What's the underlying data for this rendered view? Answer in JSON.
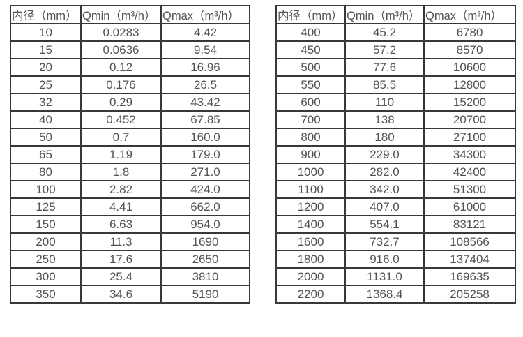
{
  "page": {
    "background_color": "#ffffff",
    "border_color": "#383838",
    "text_color": "#525252"
  },
  "chart_data": [
    {
      "type": "table",
      "title": "flow-range-table-small-diameters",
      "columns": [
        "内径（mm）",
        "Qmin（m³/h）",
        "Qmax（m³/h）"
      ],
      "rows": [
        [
          "10",
          "0.0283",
          "4.42"
        ],
        [
          "15",
          "0.0636",
          "9.54"
        ],
        [
          "20",
          "0.12",
          "16.96"
        ],
        [
          "25",
          "0.176",
          "26.5"
        ],
        [
          "32",
          "0.29",
          "43.42"
        ],
        [
          "40",
          "0.452",
          "67.85"
        ],
        [
          "50",
          "0.7",
          "160.0"
        ],
        [
          "65",
          "1.19",
          "179.0"
        ],
        [
          "80",
          "1.8",
          "271.0"
        ],
        [
          "100",
          "2.82",
          "424.0"
        ],
        [
          "125",
          "4.41",
          "662.0"
        ],
        [
          "150",
          "6.63",
          "954.0"
        ],
        [
          "200",
          "11.3",
          "1690"
        ],
        [
          "250",
          "17.6",
          "2650"
        ],
        [
          "300",
          "25.4",
          "3810"
        ],
        [
          "350",
          "34.6",
          "5190"
        ]
      ]
    },
    {
      "type": "table",
      "title": "flow-range-table-large-diameters",
      "columns": [
        "内径（mm）",
        "Qmin（m³/h）",
        "Qmax（m³/h）"
      ],
      "rows": [
        [
          "400",
          "45.2",
          "6780"
        ],
        [
          "450",
          "57.2",
          "8570"
        ],
        [
          "500",
          "77.6",
          "10600"
        ],
        [
          "550",
          "85.5",
          "12800"
        ],
        [
          "600",
          "110",
          "15200"
        ],
        [
          "700",
          "138",
          "20700"
        ],
        [
          "800",
          "180",
          "27100"
        ],
        [
          "900",
          "229.0",
          "34300"
        ],
        [
          "1000",
          "282.0",
          "42400"
        ],
        [
          "1100",
          "342.0",
          "51300"
        ],
        [
          "1200",
          "407.0",
          "61000"
        ],
        [
          "1400",
          "554.1",
          "83121"
        ],
        [
          "1600",
          "732.7",
          "108566"
        ],
        [
          "1800",
          "916.0",
          "137404"
        ],
        [
          "2000",
          "1131.0",
          "169635"
        ],
        [
          "2200",
          "1368.4",
          "205258"
        ]
      ]
    }
  ]
}
